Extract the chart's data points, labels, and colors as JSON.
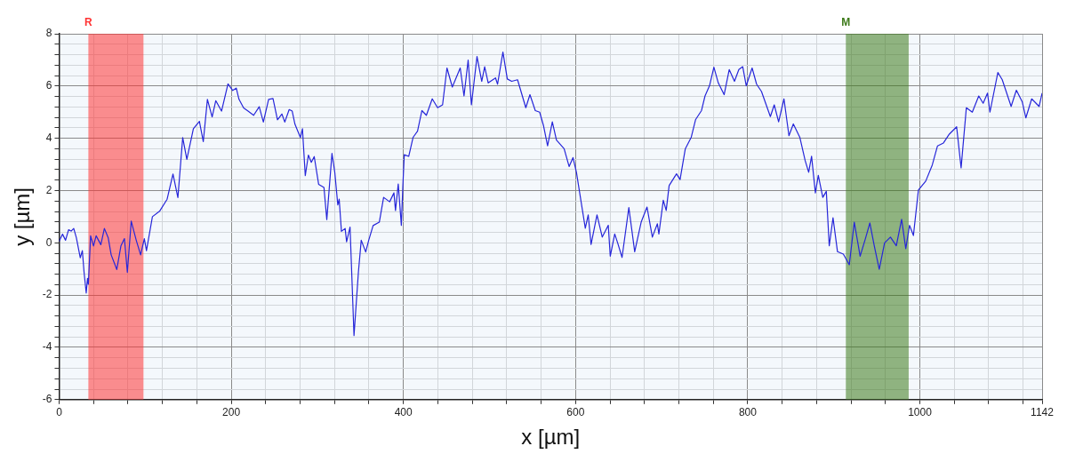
{
  "chart_data": {
    "type": "line",
    "xlabel": "x [µm]",
    "ylabel": "y [µm]",
    "xlim": [
      0,
      1142
    ],
    "ylim": [
      -6,
      8
    ],
    "xticks": [
      0,
      {
        "value": 40,
        "label": null
      },
      {
        "value": 80,
        "label": null
      },
      {
        "value": 120,
        "label": null
      },
      {
        "value": 160,
        "label": null
      },
      200,
      {
        "value": 240,
        "label": null
      },
      {
        "value": 280,
        "label": null
      },
      {
        "value": 320,
        "label": null
      },
      {
        "value": 360,
        "label": null
      },
      400,
      {
        "value": 440,
        "label": null
      },
      {
        "value": 480,
        "label": null
      },
      {
        "value": 520,
        "label": null
      },
      {
        "value": 560,
        "label": null
      },
      600,
      {
        "value": 640,
        "label": null
      },
      {
        "value": 680,
        "label": null
      },
      {
        "value": 720,
        "label": null
      },
      {
        "value": 760,
        "label": null
      },
      800,
      {
        "value": 840,
        "label": null
      },
      {
        "value": 880,
        "label": null
      },
      {
        "value": 920,
        "label": null
      },
      {
        "value": 960,
        "label": null
      },
      1000,
      {
        "value": 1040,
        "label": null
      },
      {
        "value": 1080,
        "label": null
      },
      {
        "value": 1120,
        "label": null
      },
      1142
    ],
    "yticks": [
      -6,
      {
        "value": -5.6,
        "label": null
      },
      {
        "value": -5.2,
        "label": null
      },
      {
        "value": -4.8,
        "label": null
      },
      {
        "value": -4.4,
        "label": null
      },
      -4,
      {
        "value": -3.6,
        "label": null
      },
      {
        "value": -3.2,
        "label": null
      },
      {
        "value": -2.8,
        "label": null
      },
      {
        "value": -2.4,
        "label": null
      },
      -2,
      {
        "value": -1.6,
        "label": null
      },
      {
        "value": -1.2,
        "label": null
      },
      {
        "value": -0.8,
        "label": null
      },
      {
        "value": -0.4,
        "label": null
      },
      0,
      {
        "value": 0.4,
        "label": null
      },
      {
        "value": 0.8,
        "label": null
      },
      {
        "value": 1.2,
        "label": null
      },
      {
        "value": 1.6,
        "label": null
      },
      2,
      {
        "value": 2.4,
        "label": null
      },
      {
        "value": 2.8,
        "label": null
      },
      {
        "value": 3.2,
        "label": null
      },
      {
        "value": 3.6,
        "label": null
      },
      4,
      {
        "value": 4.4,
        "label": null
      },
      {
        "value": 4.8,
        "label": null
      },
      {
        "value": 5.2,
        "label": null
      },
      {
        "value": 5.6,
        "label": null
      },
      6,
      {
        "value": 6.4,
        "label": null
      },
      {
        "value": 6.8,
        "label": null
      },
      {
        "value": 7.2,
        "label": null
      },
      {
        "value": 7.6,
        "label": null
      },
      8
    ],
    "grid": true,
    "legend": false,
    "marker": "none",
    "line_style": "solid",
    "bands": [
      {
        "axis": "x",
        "from": 34,
        "to": 98,
        "label": "R",
        "color": "#ff3333"
      },
      {
        "axis": "x",
        "from": 914,
        "to": 987,
        "label": "M",
        "color": "#3d7a1a"
      }
    ],
    "series": [
      {
        "color": "#2626d9",
        "x": [
          0,
          4,
          7.5,
          11,
          14,
          17,
          20,
          24.6,
          27,
          29,
          31.5,
          33,
          34,
          36.6,
          40,
          43,
          48.5,
          52.6,
          57,
          60.5,
          67,
          71.8,
          75.9,
          79.3,
          83.8,
          89.6,
          94.7,
          99,
          101.5,
          108.4,
          117,
          125.5,
          132.3,
          138,
          143.6,
          148.4,
          156,
          163,
          167.5,
          172.3,
          177.8,
          182,
          188.7,
          196.2,
          201.7,
          205.8,
          209,
          214.4,
          219.5,
          226,
          232.5,
          237.3,
          243.4,
          248.5,
          253.7,
          258.8,
          262.2,
          267.3,
          270.8,
          274,
          280.3,
          282.7,
          286,
          289.6,
          293,
          296.4,
          301.5,
          307.7,
          311,
          317,
          320.3,
          323.8,
          325.4,
          328,
          332.3,
          334,
          338,
          342.6,
          347.7,
          351,
          356.2,
          359.7,
          364.8,
          372,
          377,
          384,
          389,
          390.8,
          394,
          397.6,
          399.3,
          401,
          406.2,
          411.3,
          416.4,
          421.5,
          426.7,
          433.5,
          439.7,
          445.5,
          450.6,
          456.8,
          466,
          470.4,
          475.2,
          479,
          485.5,
          491,
          494.4,
          498.5,
          507,
          509.4,
          515.6,
          520.7,
          525.8,
          532.6,
          542.2,
          547,
          553.2,
          558.3,
          562.7,
          567.5,
          573,
          577.8,
          586.7,
          592.5,
          597,
          601,
          611.3,
          614.7,
          618,
          624.9,
          631,
          638,
          640.3,
          645.5,
          648.9,
          654,
          661.9,
          668.7,
          676.2,
          683,
          689.2,
          695,
          696.8,
          701.9,
          705.3,
          708.7,
          717.3,
          721.4,
          727.5,
          734.4,
          739.5,
          746.3,
          750.4,
          755.6,
          760.7,
          765.8,
          772.6,
          778.5,
          784.6,
          789.7,
          794.2,
          798.3,
          805.1,
          810.3,
          816,
          826.3,
          830.8,
          835.9,
          842.1,
          847.9,
          853,
          860.5,
          866.7,
          870.8,
          874.2,
          878.6,
          882,
          887.2,
          891.3,
          894.7,
          899.1,
          904.3,
          911.1,
          918,
          923.8,
          930.6,
          936.8,
          941.9,
          947,
          952.8,
          959,
          965.8,
          972.6,
          978.8,
          983.6,
          988,
          992.5,
          998.3,
          1006.8,
          1014.4,
          1020.5,
          1027.4,
          1034.2,
          1042.7,
          1047.9,
          1054,
          1060.9,
          1068.4,
          1073.5,
          1078.6,
          1081.4,
          1090.6,
          1095.7,
          1106,
          1112.1,
          1119,
          1123.1,
          1129.9,
          1138.5,
          1142
        ],
        "values": [
          0.05,
          0.33,
          0.1,
          0.5,
          0.45,
          0.55,
          0.2,
          -0.57,
          -0.3,
          -1.13,
          -1.92,
          -1.36,
          -1.58,
          0.27,
          -0.12,
          0.27,
          -0.07,
          0.55,
          0.2,
          -0.46,
          -1.02,
          -0.12,
          0.16,
          -1.13,
          0.83,
          0.1,
          -0.46,
          0.16,
          -0.3,
          1.0,
          1.22,
          1.67,
          2.63,
          1.73,
          4.03,
          3.19,
          4.37,
          4.65,
          3.87,
          5.49,
          4.82,
          5.44,
          5.04,
          6.08,
          5.83,
          5.92,
          5.49,
          5.16,
          5.04,
          4.88,
          5.21,
          4.62,
          5.49,
          5.52,
          4.71,
          4.93,
          4.62,
          5.1,
          5.04,
          4.54,
          4.03,
          4.37,
          2.57,
          3.36,
          3.08,
          3.3,
          2.24,
          2.12,
          0.89,
          3.42,
          2.69,
          1.45,
          1.67,
          0.44,
          0.55,
          0.04,
          0.6,
          -3.55,
          -1.13,
          0.1,
          -0.35,
          0.1,
          0.66,
          0.79,
          1.74,
          1.57,
          1.91,
          1.24,
          2.25,
          0.67,
          2.13,
          3.37,
          3.31,
          4.04,
          4.27,
          5.06,
          4.88,
          5.51,
          5.17,
          5.28,
          6.69,
          5.96,
          6.69,
          5.62,
          6.99,
          5.28,
          7.13,
          6.18,
          6.74,
          6.12,
          6.31,
          6.07,
          7.3,
          6.27,
          6.18,
          6.24,
          5.17,
          5.67,
          5.06,
          5.0,
          4.49,
          3.71,
          4.63,
          3.93,
          3.6,
          2.92,
          3.26,
          2.7,
          0.56,
          1.07,
          -0.06,
          1.07,
          0.22,
          0.67,
          -0.51,
          0.34,
          0,
          -0.56,
          1.35,
          -0.34,
          0.79,
          1.37,
          0.22,
          0.73,
          0.34,
          1.63,
          1.24,
          2.19,
          2.64,
          2.42,
          3.6,
          4.04,
          4.72,
          5.06,
          5.62,
          6.01,
          6.72,
          6.12,
          5.67,
          6.63,
          6.18,
          6.63,
          6.74,
          6.01,
          6.69,
          6.07,
          5.79,
          4.83,
          5.28,
          4.63,
          5.51,
          4.1,
          4.55,
          4.04,
          3.15,
          2.7,
          3.31,
          1.91,
          2.58,
          1.74,
          1.97,
          -0.11,
          0.96,
          -0.34,
          -0.43,
          -0.84,
          0.79,
          -0.51,
          0.17,
          0.76,
          -0.11,
          -1.01,
          0,
          0.22,
          -0.11,
          0.9,
          -0.22,
          0.67,
          0.28,
          2.02,
          2.36,
          2.98,
          3.71,
          3.82,
          4.16,
          4.44,
          2.87,
          5.17,
          5,
          5.62,
          5.34,
          5.73,
          5,
          6.52,
          6.24,
          5.22,
          5.84,
          5.39,
          4.78,
          5.51,
          5.22,
          5.73
        ]
      }
    ]
  }
}
